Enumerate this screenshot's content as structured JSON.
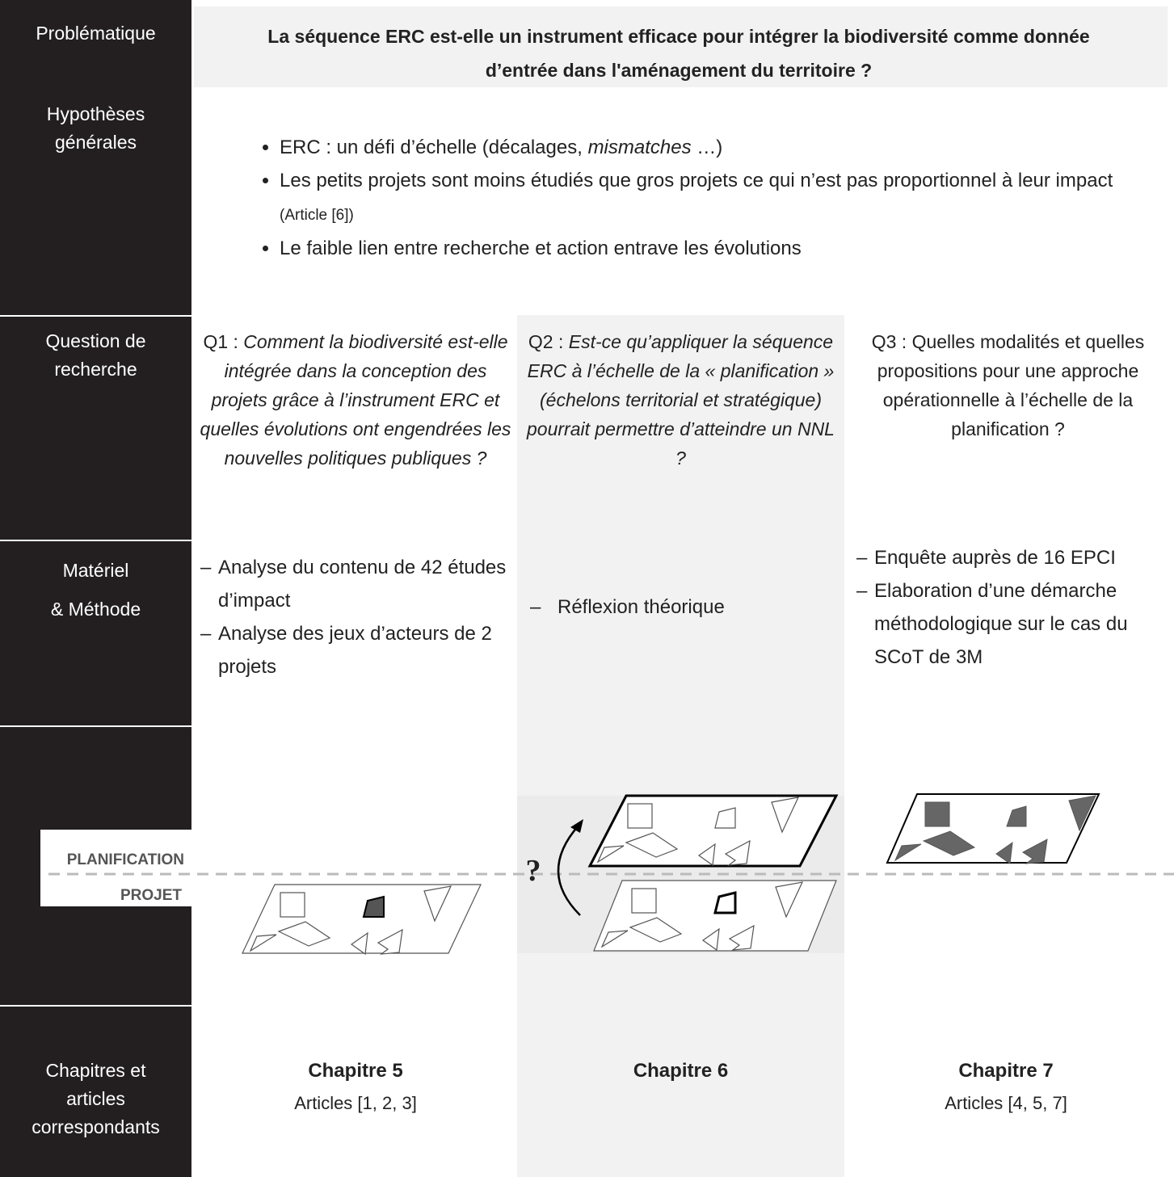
{
  "problematique": {
    "label": "Problématique",
    "text": "La séquence ERC est-elle un instrument efficace pour intégrer la biodiversité comme donnée d’entrée dans l'aménagement du territoire ?"
  },
  "hypotheses": {
    "label_lines": [
      "Hypothèses",
      "générales"
    ],
    "items": [
      [
        "ERC : un défi d’échelle (décalages, ",
        "mismatches",
        " …)"
      ],
      [
        "Les petits projets sont moins étudiés que gros projets ce qui n’est pas proportionnel à leur impact ",
        "(Article [6])"
      ],
      [
        "Le faible lien entre recherche et action entrave les évolutions"
      ]
    ]
  },
  "questions": {
    "label_lines": [
      "Question de",
      "recherche"
    ],
    "columns": [
      {
        "prefix": "Q1 : ",
        "text": "Comment la biodiversité est-elle intégrée dans la conception des projets grâce à l’instrument ERC et quelles évolutions ont engendrées les nouvelles politiques publiques ?"
      },
      {
        "prefix": "Q2 : ",
        "text": "Est-ce qu’appliquer la séquence ERC à l’échelle de la « planification » (échelons territorial et stratégique) pourrait permettre d’atteindre un NNL ?"
      },
      {
        "text": "Q3 : Quelles modalités et quelles propositions pour une approche opérationnelle à l’échelle de la planification ?"
      }
    ]
  },
  "methods": {
    "label_lines": [
      "Matériel",
      "& Méthode"
    ],
    "columns": [
      [
        "Analyse du contenu de 42 études d’impact",
        "Analyse des jeux d’acteurs de 2 projets"
      ],
      [
        "Réflexion théorique"
      ],
      [
        "Enquête auprès de 16 EPCI",
        "Elaboration d’une démarche méthodologique sur le cas du SCoT de 3M"
      ]
    ]
  },
  "diagram": {
    "upper_label": "PLANIFICATION",
    "lower_label": "PROJET",
    "question_mark": "?"
  },
  "chapters": {
    "label_lines": [
      "Chapitres et",
      "articles",
      "correspondants"
    ],
    "columns": [
      {
        "title": "Chapitre 5",
        "articles": "Articles [1, 2, 3]"
      },
      {
        "title": "Chapitre 6"
      },
      {
        "title": "Chapitre 7",
        "articles": "Articles [4, 5, 7]"
      }
    ]
  }
}
